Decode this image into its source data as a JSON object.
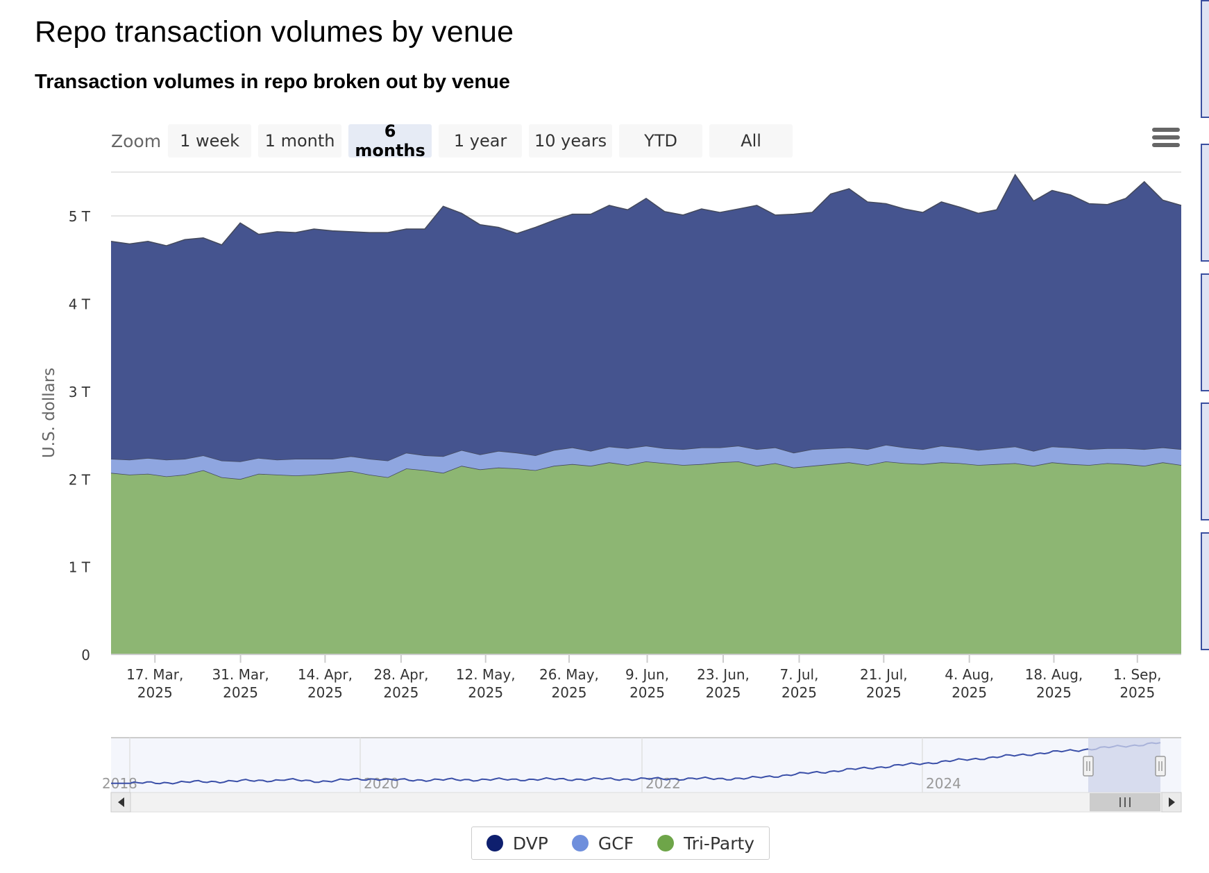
{
  "title": "Repo transaction volumes by venue",
  "subtitle": "Transaction volumes in repo broken out by venue",
  "zoom": {
    "label": "Zoom",
    "buttons": [
      "1 week",
      "1 month",
      "6 months",
      "1 year",
      "10 years",
      "YTD",
      "All"
    ],
    "selected": "6 months"
  },
  "menu_icon": "hamburger-menu-icon",
  "colors": {
    "dvp": "#45548f",
    "gcf": "#8fa6e0",
    "triparty": "#8db673",
    "gridline": "#dcdcdc",
    "navigator_line": "#3a4fa8",
    "navigator_mask": "#cdd3ea"
  },
  "chart_data": {
    "type": "area",
    "stacked": true,
    "title": "Repo transaction volumes by venue",
    "subtitle": "Transaction volumes in repo broken out by venue",
    "ylabel": "U.S. dollars",
    "ylim": [
      0,
      5.5
    ],
    "yticks": [
      0,
      1,
      2,
      3,
      4,
      5
    ],
    "ytick_labels": [
      "0",
      "1 T",
      "2 T",
      "3 T",
      "4 T",
      "5 T"
    ],
    "x_range": [
      "2025-03-10",
      "2025-09-10"
    ],
    "xtick_labels": [
      [
        "17. Mar,",
        "2025"
      ],
      [
        "31. Mar,",
        "2025"
      ],
      [
        "14. Apr,",
        "2025"
      ],
      [
        "28. Apr,",
        "2025"
      ],
      [
        "12. May,",
        "2025"
      ],
      [
        "26. May,",
        "2025"
      ],
      [
        "9. Jun,",
        "2025"
      ],
      [
        "23. Jun,",
        "2025"
      ],
      [
        "7. Jul,",
        "2025"
      ],
      [
        "21. Jul,",
        "2025"
      ],
      [
        "4. Aug,",
        "2025"
      ],
      [
        "18. Aug,",
        "2025"
      ],
      [
        "1. Sep,",
        "2025"
      ]
    ],
    "xtick_fracs": [
      0.041,
      0.121,
      0.2,
      0.271,
      0.35,
      0.428,
      0.501,
      0.572,
      0.643,
      0.722,
      0.802,
      0.881,
      0.959
    ],
    "legend": [
      "DVP",
      "GCF",
      "Tri-Party"
    ],
    "series": [
      {
        "name": "Tri-Party",
        "values": [
          2.07,
          2.05,
          2.06,
          2.03,
          2.05,
          2.1,
          2.02,
          2.0,
          2.06,
          2.05,
          2.04,
          2.05,
          2.07,
          2.09,
          2.05,
          2.02,
          2.12,
          2.1,
          2.07,
          2.15,
          2.11,
          2.13,
          2.12,
          2.1,
          2.15,
          2.17,
          2.15,
          2.19,
          2.16,
          2.2,
          2.18,
          2.16,
          2.17,
          2.19,
          2.2,
          2.15,
          2.18,
          2.13,
          2.15,
          2.17,
          2.19,
          2.16,
          2.2,
          2.18,
          2.17,
          2.19,
          2.18,
          2.16,
          2.17,
          2.18,
          2.15,
          2.19,
          2.17,
          2.16,
          2.18,
          2.17,
          2.15,
          2.19,
          2.16
        ]
      },
      {
        "name": "GCF",
        "values": [
          0.16,
          0.17,
          0.18,
          0.19,
          0.18,
          0.17,
          0.19,
          0.2,
          0.18,
          0.17,
          0.19,
          0.18,
          0.16,
          0.17,
          0.18,
          0.19,
          0.18,
          0.17,
          0.19,
          0.18,
          0.17,
          0.19,
          0.18,
          0.17,
          0.18,
          0.19,
          0.17,
          0.18,
          0.19,
          0.18,
          0.17,
          0.18,
          0.19,
          0.17,
          0.18,
          0.19,
          0.18,
          0.17,
          0.19,
          0.18,
          0.17,
          0.18,
          0.19,
          0.18,
          0.17,
          0.19,
          0.18,
          0.17,
          0.18,
          0.19,
          0.17,
          0.18,
          0.19,
          0.18,
          0.17,
          0.18,
          0.19,
          0.17,
          0.18
        ]
      },
      {
        "name": "DVP",
        "values": [
          2.48,
          2.46,
          2.47,
          2.44,
          2.5,
          2.48,
          2.46,
          2.72,
          2.55,
          2.6,
          2.58,
          2.62,
          2.6,
          2.56,
          2.58,
          2.6,
          2.55,
          2.58,
          2.85,
          2.7,
          2.62,
          2.55,
          2.5,
          2.6,
          2.62,
          2.66,
          2.7,
          2.75,
          2.72,
          2.82,
          2.7,
          2.67,
          2.72,
          2.68,
          2.7,
          2.78,
          2.65,
          2.72,
          2.7,
          2.9,
          2.95,
          2.82,
          2.75,
          2.72,
          2.7,
          2.78,
          2.74,
          2.7,
          2.72,
          3.1,
          2.85,
          2.92,
          2.88,
          2.8,
          2.78,
          2.85,
          3.05,
          2.82,
          2.78
        ]
      }
    ],
    "navigator": {
      "year_labels": [
        "2018",
        "2020",
        "2022",
        "2024"
      ],
      "selected_range": "6 months"
    }
  }
}
